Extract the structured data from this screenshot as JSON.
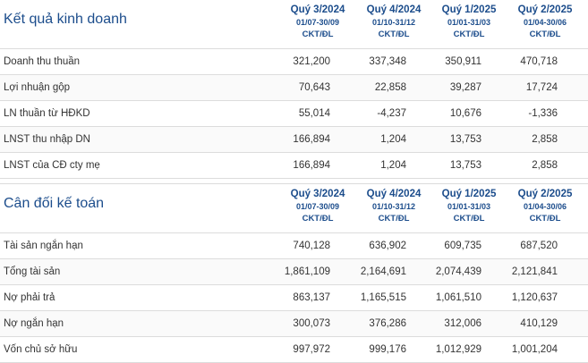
{
  "kqkd": {
    "title": "Kết quả kinh doanh",
    "columns": [
      {
        "quarter": "Quý 3/2024",
        "range": "01/07-30/09",
        "unit": "CKT/ĐL"
      },
      {
        "quarter": "Quý 4/2024",
        "range": "01/10-31/12",
        "unit": "CKT/ĐL"
      },
      {
        "quarter": "Quý 1/2025",
        "range": "01/01-31/03",
        "unit": "CKT/ĐL"
      },
      {
        "quarter": "Quý 2/2025",
        "range": "01/04-30/06",
        "unit": "CKT/ĐL"
      }
    ],
    "rows": [
      {
        "label": "Doanh thu thuần",
        "values": [
          "321,200",
          "337,348",
          "350,911",
          "470,718"
        ]
      },
      {
        "label": "Lợi nhuận gộp",
        "values": [
          "70,643",
          "22,858",
          "39,287",
          "17,724"
        ]
      },
      {
        "label": "LN thuần từ HĐKD",
        "values": [
          "55,014",
          "-4,237",
          "10,676",
          "-1,336"
        ]
      },
      {
        "label": "LNST thu nhập DN",
        "values": [
          "166,894",
          "1,204",
          "13,753",
          "2,858"
        ]
      },
      {
        "label": "LNST của CĐ cty mẹ",
        "values": [
          "166,894",
          "1,204",
          "13,753",
          "2,858"
        ]
      }
    ]
  },
  "cdkt": {
    "title": "Cân đối kế toán",
    "columns": [
      {
        "quarter": "Quý 3/2024",
        "range": "01/07-30/09",
        "unit": "CKT/ĐL"
      },
      {
        "quarter": "Quý 4/2024",
        "range": "01/10-31/12",
        "unit": "CKT/ĐL"
      },
      {
        "quarter": "Quý 1/2025",
        "range": "01/01-31/03",
        "unit": "CKT/ĐL"
      },
      {
        "quarter": "Quý 2/2025",
        "range": "01/04-30/06",
        "unit": "CKT/ĐL"
      }
    ],
    "rows": [
      {
        "label": "Tài sản ngắn hạn",
        "values": [
          "740,128",
          "636,902",
          "609,735",
          "687,520"
        ]
      },
      {
        "label": "Tổng tài sản",
        "values": [
          "1,861,109",
          "2,164,691",
          "2,074,439",
          "2,121,841"
        ]
      },
      {
        "label": "Nợ phải trả",
        "values": [
          "863,137",
          "1,165,515",
          "1,061,510",
          "1,120,637"
        ]
      },
      {
        "label": "Nợ ngắn hạn",
        "values": [
          "300,073",
          "376,286",
          "312,006",
          "410,129"
        ]
      },
      {
        "label": "Vốn chủ sở hữu",
        "values": [
          "997,972",
          "999,176",
          "1,012,929",
          "1,001,204"
        ]
      }
    ]
  }
}
